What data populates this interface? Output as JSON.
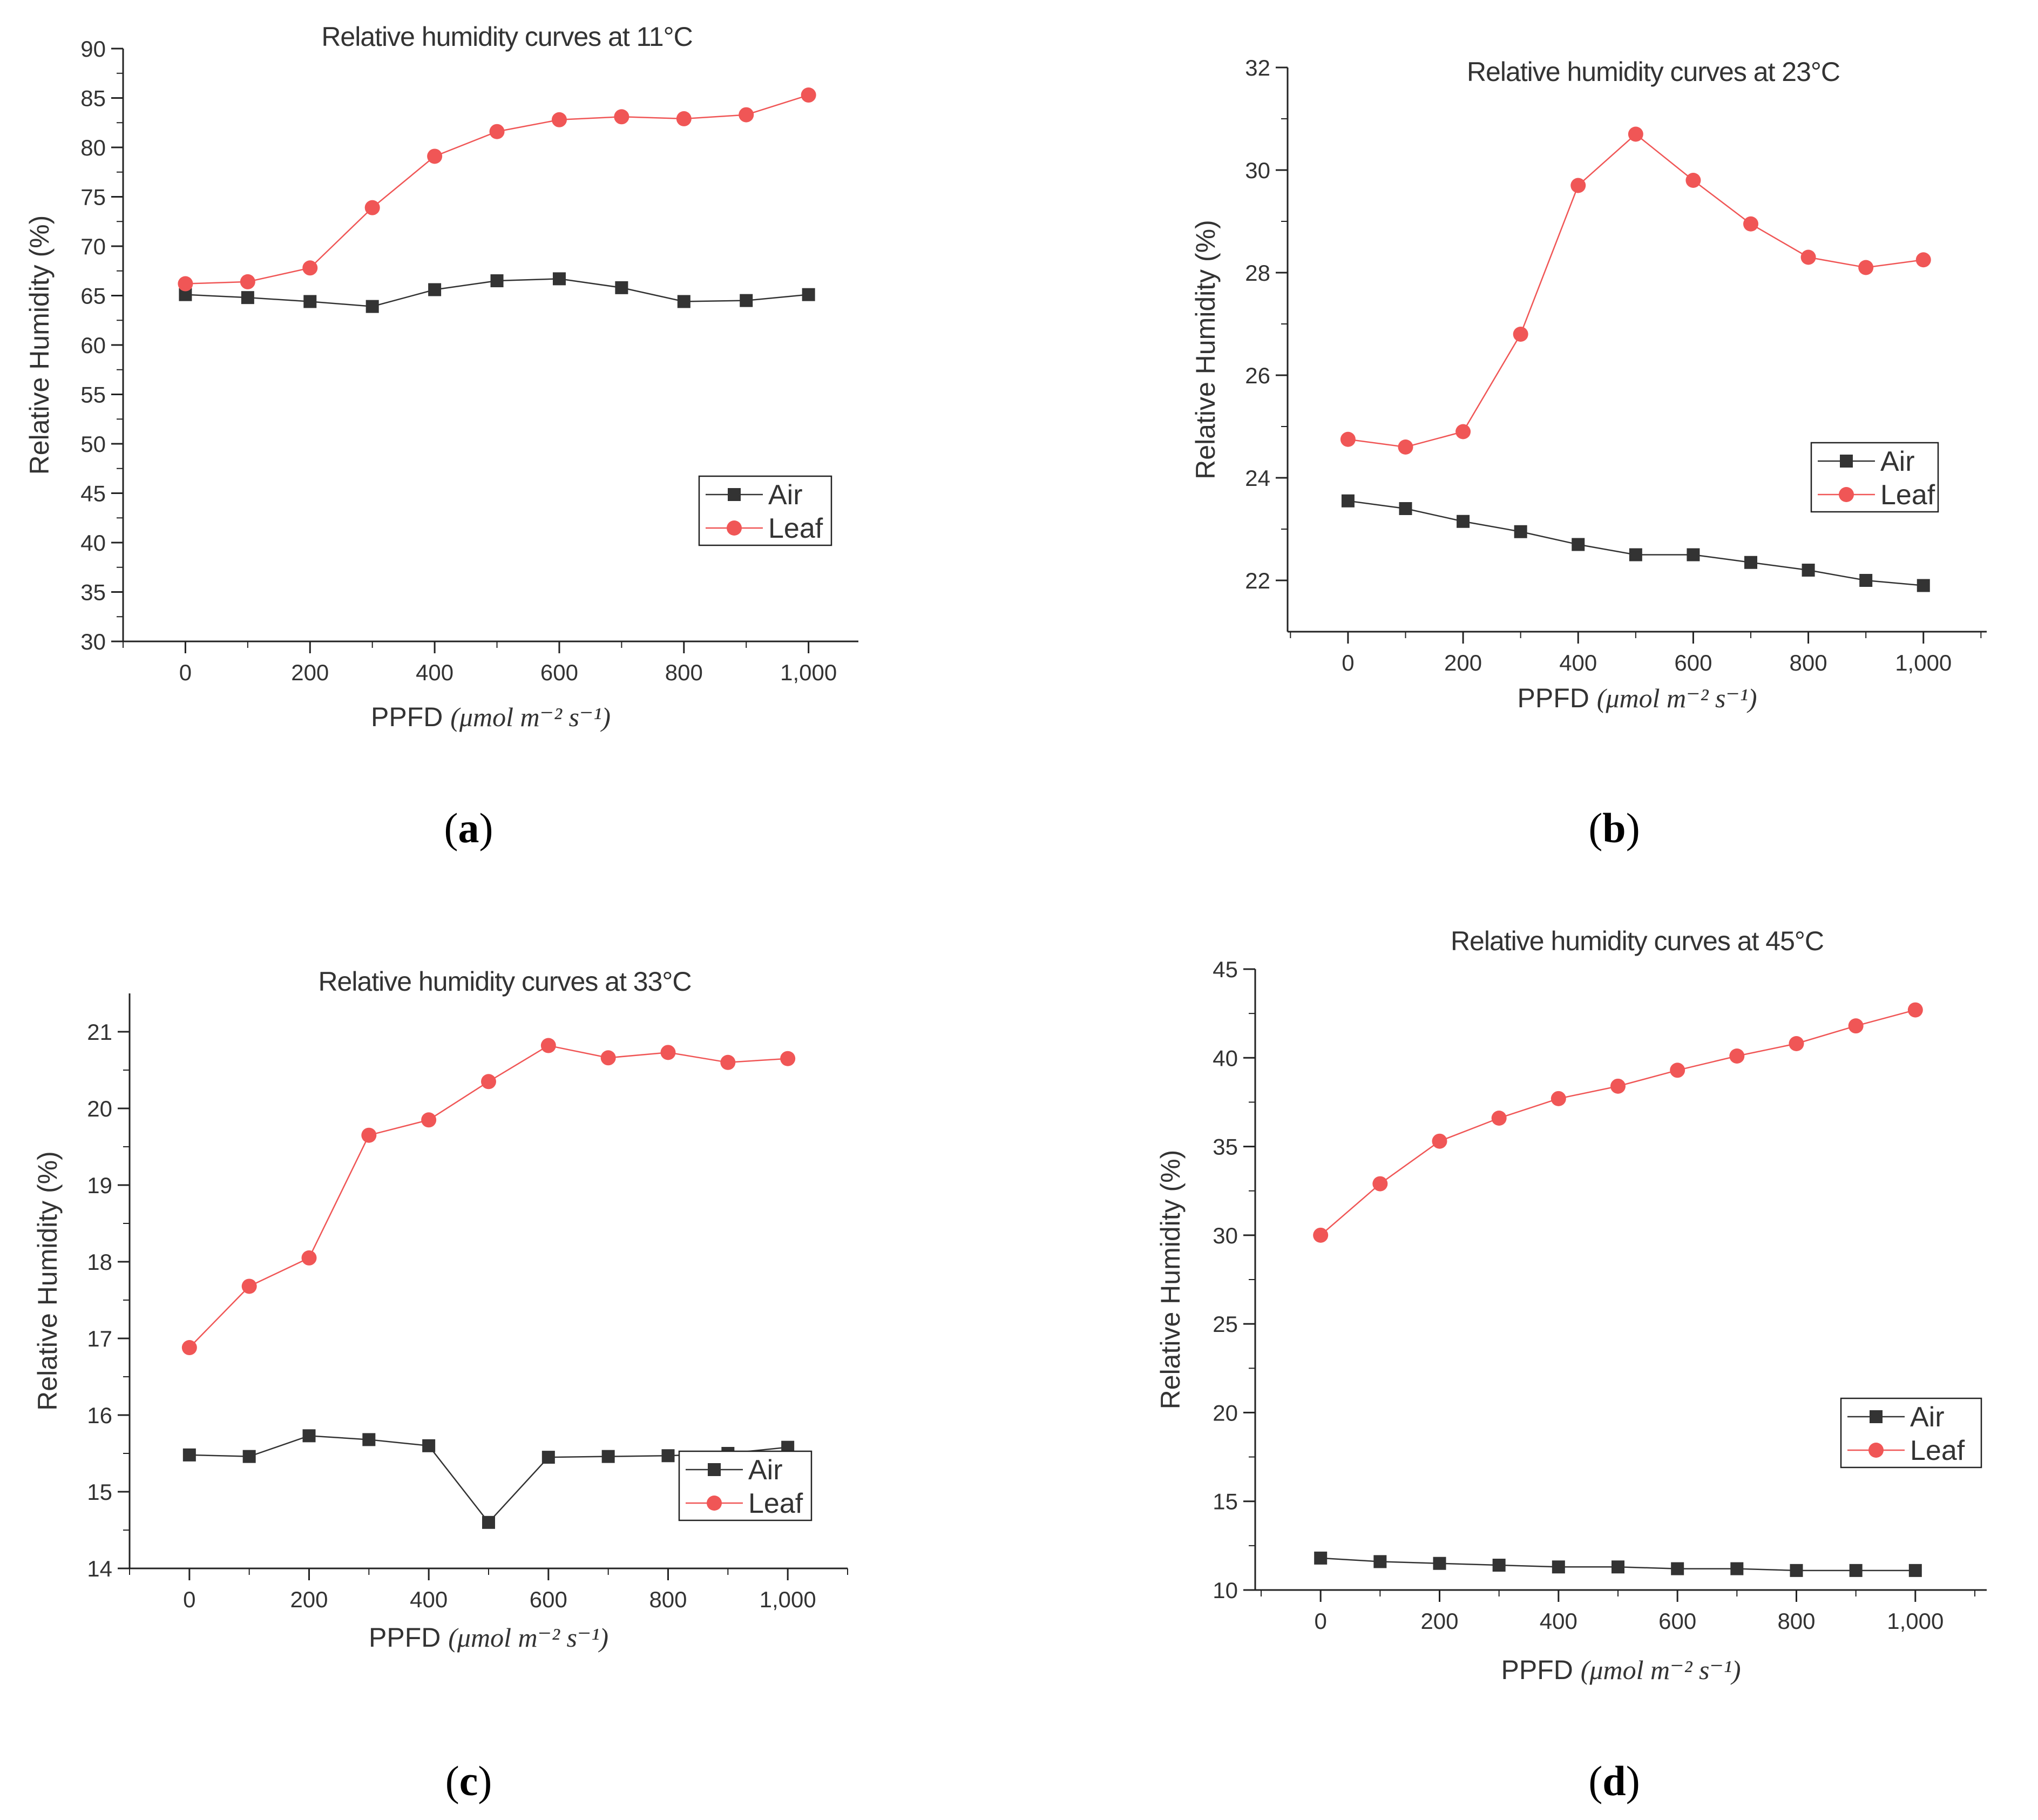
{
  "figure": {
    "panel_labels": [
      "a",
      "b",
      "c",
      "d"
    ],
    "colors": {
      "air": "#333333",
      "leaf": "#f05656",
      "axis": "#222222",
      "text": "#333333"
    }
  },
  "chart_data": [
    {
      "type": "line",
      "panel": "a",
      "title": "Relative humidity curves at 11°C",
      "xlabel": "PPFD",
      "xlabel_units": "(μmol m⁻² s⁻¹)",
      "ylabel": "Relative Humidity (%)",
      "x": [
        0,
        100,
        200,
        300,
        400,
        500,
        600,
        700,
        800,
        900,
        1000
      ],
      "x_ticks": [
        0,
        200,
        400,
        600,
        800,
        1000
      ],
      "x_tick_labels": [
        "0",
        "200",
        "400",
        "600",
        "800",
        "1,000"
      ],
      "y_ticks": [
        30,
        35,
        40,
        45,
        50,
        55,
        60,
        65,
        70,
        75,
        80,
        85,
        90
      ],
      "xlim": [
        -100,
        1100
      ],
      "ylim": [
        30,
        90
      ],
      "legend_position": "middle-right",
      "series": [
        {
          "name": "Air",
          "marker": "square",
          "values": [
            65.1,
            64.8,
            64.4,
            63.9,
            65.6,
            66.5,
            66.7,
            65.8,
            64.4,
            64.5,
            65.1
          ]
        },
        {
          "name": "Leaf",
          "marker": "circle",
          "values": [
            66.2,
            66.4,
            67.8,
            73.9,
            79.1,
            81.6,
            82.8,
            83.1,
            82.9,
            83.3,
            85.3
          ]
        }
      ]
    },
    {
      "type": "line",
      "panel": "b",
      "title": "Relative humidity curves at 23°C",
      "xlabel": "PPFD",
      "xlabel_units": "(μmol m⁻² s⁻¹)",
      "ylabel": "Relative Humidity (%)",
      "x": [
        0,
        100,
        200,
        300,
        400,
        500,
        600,
        700,
        800,
        900,
        1000
      ],
      "x_ticks": [
        0,
        200,
        400,
        600,
        800,
        1000
      ],
      "x_tick_labels": [
        "0",
        "200",
        "400",
        "600",
        "800",
        "1,000"
      ],
      "y_ticks": [
        22,
        24,
        26,
        28,
        30,
        32
      ],
      "xlim": [
        -100,
        1100
      ],
      "ylim": [
        21,
        32
      ],
      "legend_position": "middle-right",
      "series": [
        {
          "name": "Air",
          "marker": "square",
          "values": [
            23.55,
            23.4,
            23.15,
            22.95,
            22.7,
            22.5,
            22.5,
            22.35,
            22.2,
            22.0,
            21.9
          ]
        },
        {
          "name": "Leaf",
          "marker": "circle",
          "values": [
            24.75,
            24.6,
            24.9,
            26.8,
            29.7,
            30.7,
            29.8,
            28.95,
            28.3,
            28.1,
            28.25
          ]
        }
      ]
    },
    {
      "type": "line",
      "panel": "c",
      "title": "Relative humidity curves at 33°C",
      "xlabel": "PPFD",
      "xlabel_units": "(μmol m⁻² s⁻¹)",
      "ylabel": "Relative Humidity (%)",
      "x": [
        0,
        100,
        200,
        300,
        400,
        500,
        600,
        700,
        800,
        900,
        1000
      ],
      "x_ticks": [
        0,
        200,
        400,
        600,
        800,
        1000
      ],
      "x_tick_labels": [
        "0",
        "200",
        "400",
        "600",
        "800",
        "1,000"
      ],
      "y_ticks": [
        14,
        15,
        16,
        17,
        18,
        19,
        20,
        21
      ],
      "xlim": [
        -100,
        1100
      ],
      "ylim": [
        14,
        21.5
      ],
      "legend_position": "bottom-right",
      "series": [
        {
          "name": "Air",
          "marker": "square",
          "values": [
            15.48,
            15.46,
            15.73,
            15.68,
            15.6,
            14.6,
            15.45,
            15.46,
            15.47,
            15.5,
            15.58
          ]
        },
        {
          "name": "Leaf",
          "marker": "circle",
          "values": [
            16.88,
            17.68,
            18.05,
            19.65,
            19.85,
            20.35,
            20.82,
            20.66,
            20.73,
            20.6,
            20.65
          ]
        }
      ]
    },
    {
      "type": "line",
      "panel": "d",
      "title": "Relative humidity curves at 45°C",
      "xlabel": "PPFD",
      "xlabel_units": "(μmol m⁻² s⁻¹)",
      "ylabel": "Relative Humidity (%)",
      "x": [
        0,
        100,
        200,
        300,
        400,
        500,
        600,
        700,
        800,
        900,
        1000
      ],
      "x_ticks": [
        0,
        200,
        400,
        600,
        800,
        1000
      ],
      "x_tick_labels": [
        "0",
        "200",
        "400",
        "600",
        "800",
        "1,000"
      ],
      "y_ticks": [
        10,
        15,
        20,
        25,
        30,
        35,
        40,
        45
      ],
      "xlim": [
        -100,
        1100
      ],
      "ylim": [
        10,
        45
      ],
      "legend_position": "bottom-right",
      "series": [
        {
          "name": "Air",
          "marker": "square",
          "values": [
            11.8,
            11.6,
            11.5,
            11.4,
            11.3,
            11.3,
            11.2,
            11.2,
            11.1,
            11.1,
            11.1
          ]
        },
        {
          "name": "Leaf",
          "marker": "circle",
          "values": [
            30.0,
            32.9,
            35.3,
            36.6,
            37.7,
            38.4,
            39.3,
            40.1,
            40.8,
            41.8,
            42.7
          ]
        }
      ]
    }
  ]
}
